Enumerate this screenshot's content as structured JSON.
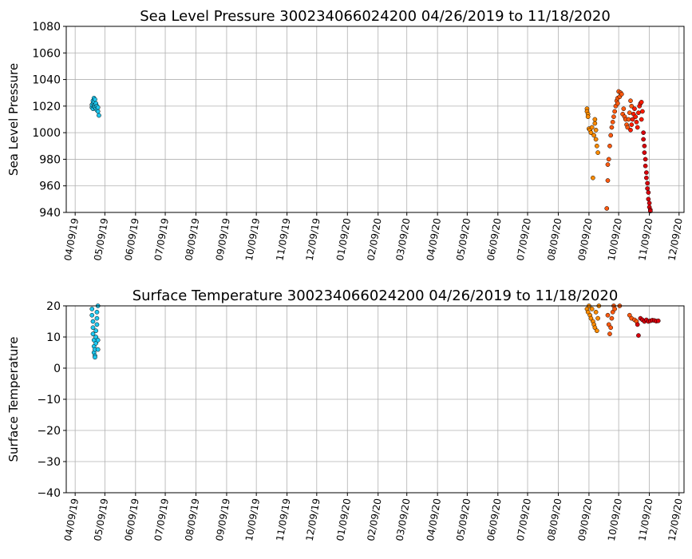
{
  "chart_data": [
    {
      "type": "scatter",
      "title": "Sea Level Pressure 300234066024200  04/26/2019 to 11/18/2020",
      "xlabel": "",
      "ylabel": "Sea Level Pressure",
      "xlim": [
        "2019-03-31",
        "2020-12-14"
      ],
      "ylim": [
        940,
        1080
      ],
      "grid": true,
      "x_ticks": [
        "04/09/19",
        "05/09/19",
        "06/09/19",
        "07/09/19",
        "08/09/19",
        "09/09/19",
        "10/09/19",
        "11/09/19",
        "12/09/19",
        "01/09/20",
        "02/09/20",
        "03/09/20",
        "04/09/20",
        "05/09/20",
        "06/09/20",
        "07/09/20",
        "08/09/20",
        "09/09/20",
        "10/09/20",
        "11/09/20",
        "12/09/20"
      ],
      "y_ticks": [
        940,
        960,
        980,
        1000,
        1020,
        1040,
        1060,
        1080
      ],
      "series": [
        {
          "color": "#1ec8f0",
          "points": [
            [
              "2019-04-26",
              1019
            ],
            [
              "2019-04-26",
              1021
            ],
            [
              "2019-04-27",
              1018
            ],
            [
              "2019-04-27",
              1022
            ],
            [
              "2019-04-27",
              1024
            ],
            [
              "2019-04-28",
              1020
            ],
            [
              "2019-04-28",
              1026
            ],
            [
              "2019-04-28",
              1023
            ],
            [
              "2019-04-29",
              1021
            ],
            [
              "2019-04-29",
              1019
            ],
            [
              "2019-04-29",
              1025
            ],
            [
              "2019-04-30",
              1022
            ],
            [
              "2019-04-30",
              1018
            ],
            [
              "2019-05-01",
              1020
            ],
            [
              "2019-05-01",
              1017
            ],
            [
              "2019-05-02",
              1016
            ],
            [
              "2019-05-02",
              1019
            ],
            [
              "2019-05-03",
              1013
            ]
          ]
        },
        {
          "color": "#ff8c00",
          "points": [
            [
              "2020-09-07",
              1018
            ],
            [
              "2020-09-07",
              1016
            ],
            [
              "2020-09-08",
              1014
            ],
            [
              "2020-09-08",
              1012
            ],
            [
              "2020-09-09",
              1003
            ],
            [
              "2020-09-10",
              1002
            ],
            [
              "2020-09-11",
              1000
            ],
            [
              "2020-09-12",
              1004
            ],
            [
              "2020-09-13",
              966
            ],
            [
              "2020-09-14",
              998
            ],
            [
              "2020-09-15",
              1007
            ],
            [
              "2020-09-15",
              1010
            ],
            [
              "2020-09-16",
              1002
            ],
            [
              "2020-09-16",
              995
            ],
            [
              "2020-09-17",
              990
            ],
            [
              "2020-09-18",
              985
            ]
          ]
        },
        {
          "color": "#ff5a10",
          "points": [
            [
              "2020-09-28",
              976
            ],
            [
              "2020-09-29",
              980
            ],
            [
              "2020-09-30",
              990
            ],
            [
              "2020-10-01",
              998
            ],
            [
              "2020-10-02",
              1004
            ],
            [
              "2020-10-03",
              1008
            ],
            [
              "2020-10-04",
              1012
            ],
            [
              "2020-10-05",
              1016
            ],
            [
              "2020-10-06",
              1020
            ],
            [
              "2020-10-07",
              1024
            ],
            [
              "2020-10-08",
              1026
            ],
            [
              "2020-10-08",
              1022
            ],
            [
              "2020-10-09",
              1031
            ],
            [
              "2020-10-10",
              1027
            ],
            [
              "2020-10-11",
              1030
            ],
            [
              "2020-10-12",
              1029
            ],
            [
              "2020-10-13",
              1014
            ],
            [
              "2020-10-14",
              1018
            ],
            [
              "2020-10-15",
              1012
            ],
            [
              "2020-10-16",
              1010
            ],
            [
              "2020-09-28",
              964
            ],
            [
              "2020-09-27",
              943
            ],
            [
              "2020-10-17",
              1006
            ],
            [
              "2020-10-18",
              1004
            ],
            [
              "2020-10-19",
              1010
            ],
            [
              "2020-10-20",
              1015
            ],
            [
              "2020-10-21",
              1024
            ],
            [
              "2020-10-22",
              1020
            ]
          ]
        },
        {
          "color": "#ff1a00",
          "points": [
            [
              "2020-10-21",
              1002
            ],
            [
              "2020-10-22",
              1006
            ],
            [
              "2020-10-23",
              1010
            ],
            [
              "2020-10-24",
              1014
            ],
            [
              "2020-10-25",
              1018
            ],
            [
              "2020-10-26",
              1012
            ],
            [
              "2020-10-27",
              1008
            ],
            [
              "2020-10-28",
              1004
            ],
            [
              "2020-10-29",
              1015
            ],
            [
              "2020-10-30",
              1020
            ],
            [
              "2020-10-31",
              1022
            ],
            [
              "2020-11-01",
              1023
            ],
            [
              "2020-11-01",
              1010
            ],
            [
              "2020-11-02",
              1016
            ]
          ]
        },
        {
          "color": "#d8000c",
          "points": [
            [
              "2020-11-03",
              1000
            ],
            [
              "2020-11-03",
              995
            ],
            [
              "2020-11-04",
              990
            ],
            [
              "2020-11-04",
              985
            ],
            [
              "2020-11-05",
              980
            ],
            [
              "2020-11-05",
              975
            ],
            [
              "2020-11-06",
              970
            ],
            [
              "2020-11-06",
              966
            ],
            [
              "2020-11-07",
              962
            ],
            [
              "2020-11-07",
              958
            ],
            [
              "2020-11-08",
              955
            ],
            [
              "2020-11-08",
              950
            ],
            [
              "2020-11-09",
              947
            ],
            [
              "2020-11-09",
              944
            ],
            [
              "2020-11-10",
              942
            ],
            [
              "2020-11-10",
              941
            ]
          ]
        }
      ]
    },
    {
      "type": "scatter",
      "title": "Surface Temperature 300234066024200  04/26/2019 to 11/18/2020",
      "xlabel": "",
      "ylabel": "Surface Temperature",
      "xlim": [
        "2019-03-31",
        "2020-12-14"
      ],
      "ylim": [
        -40,
        20
      ],
      "grid": true,
      "x_ticks": [
        "04/09/19",
        "05/09/19",
        "06/09/19",
        "07/09/19",
        "08/09/19",
        "09/09/19",
        "10/09/19",
        "11/09/19",
        "12/09/19",
        "01/09/20",
        "02/09/20",
        "03/09/20",
        "04/09/20",
        "05/09/20",
        "06/09/20",
        "07/09/20",
        "08/09/20",
        "09/09/20",
        "10/09/20",
        "11/09/20",
        "12/09/20"
      ],
      "y_ticks": [
        -40,
        -30,
        -20,
        -10,
        0,
        10,
        20
      ],
      "y_tick_labels": [
        "−40",
        "−30",
        "−20",
        "−10",
        "0",
        "10",
        "20"
      ],
      "series": [
        {
          "color": "#1ec8f0",
          "points": [
            [
              "2019-04-26",
              19
            ],
            [
              "2019-04-26",
              17
            ],
            [
              "2019-04-27",
              15
            ],
            [
              "2019-04-27",
              13
            ],
            [
              "2019-04-27",
              11
            ],
            [
              "2019-04-28",
              9
            ],
            [
              "2019-04-28",
              7
            ],
            [
              "2019-04-28",
              5
            ],
            [
              "2019-04-29",
              4
            ],
            [
              "2019-04-29",
              3.5
            ],
            [
              "2019-04-29",
              6
            ],
            [
              "2019-04-30",
              8
            ],
            [
              "2019-04-30",
              10
            ],
            [
              "2019-04-30",
              12
            ],
            [
              "2019-05-01",
              14
            ],
            [
              "2019-05-01",
              16
            ],
            [
              "2019-05-01",
              18
            ],
            [
              "2019-05-02",
              20
            ],
            [
              "2019-05-02",
              9
            ],
            [
              "2019-05-02",
              6
            ]
          ]
        },
        {
          "color": "#ff8c00",
          "points": [
            [
              "2020-09-07",
              19
            ],
            [
              "2020-09-08",
              18
            ],
            [
              "2020-09-09",
              20
            ],
            [
              "2020-09-10",
              17
            ],
            [
              "2020-09-11",
              16
            ],
            [
              "2020-09-12",
              19
            ],
            [
              "2020-09-13",
              15
            ],
            [
              "2020-09-14",
              14
            ],
            [
              "2020-09-15",
              13
            ],
            [
              "2020-09-16",
              18
            ],
            [
              "2020-09-17",
              12
            ],
            [
              "2020-09-18",
              16
            ],
            [
              "2020-09-19",
              20
            ]
          ]
        },
        {
          "color": "#ff5a10",
          "points": [
            [
              "2020-09-28",
              17
            ],
            [
              "2020-09-29",
              14
            ],
            [
              "2020-09-30",
              11
            ],
            [
              "2020-10-01",
              13
            ],
            [
              "2020-10-02",
              16
            ],
            [
              "2020-10-03",
              18
            ],
            [
              "2020-10-04",
              20
            ],
            [
              "2020-10-05",
              19
            ],
            [
              "2020-10-10",
              20
            ],
            [
              "2020-10-20",
              17
            ],
            [
              "2020-10-22",
              16
            ],
            [
              "2020-10-25",
              15.5
            ],
            [
              "2020-10-27",
              15
            ]
          ]
        },
        {
          "color": "#d8000c",
          "points": [
            [
              "2020-10-28",
              14
            ],
            [
              "2020-10-29",
              10.5
            ],
            [
              "2020-10-31",
              16
            ],
            [
              "2020-11-02",
              15.5
            ],
            [
              "2020-11-04",
              15
            ],
            [
              "2020-11-06",
              15.5
            ],
            [
              "2020-11-08",
              15
            ],
            [
              "2020-11-10",
              15.2
            ],
            [
              "2020-11-12",
              15.4
            ],
            [
              "2020-11-14",
              15.3
            ],
            [
              "2020-11-16",
              15.1
            ],
            [
              "2020-11-18",
              15.2
            ]
          ]
        }
      ]
    }
  ]
}
